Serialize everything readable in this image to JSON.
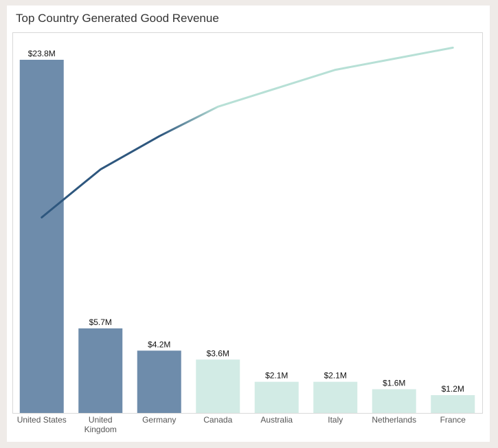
{
  "chart_data": {
    "type": "bar",
    "title": "Top Country Generated Good Revenue",
    "categories": [
      "United States",
      "United Kingdom",
      "Germany",
      "Canada",
      "Australia",
      "Italy",
      "Netherlands",
      "France"
    ],
    "values": [
      23.8,
      5.7,
      4.2,
      3.6,
      2.1,
      2.1,
      1.6,
      1.2
    ],
    "value_labels": [
      "$23.8M",
      "$5.7M",
      "$4.2M",
      "$3.6M",
      "$2.1M",
      "$2.1M",
      "$1.6M",
      "$1.2M"
    ],
    "ylim": [
      0,
      24.8
    ],
    "grid": false,
    "overlay_line": {
      "type": "line",
      "description_values_cumulative_percent": [
        53,
        66,
        75,
        83,
        88,
        93,
        96,
        99
      ],
      "ylim": [
        0,
        100
      ]
    },
    "colors": {
      "highlight": "#6e8cab",
      "other": "#d2ebe5",
      "line_dark": "#2e577e",
      "line_light": "#b7e0d6"
    },
    "highlight_count": 3
  }
}
